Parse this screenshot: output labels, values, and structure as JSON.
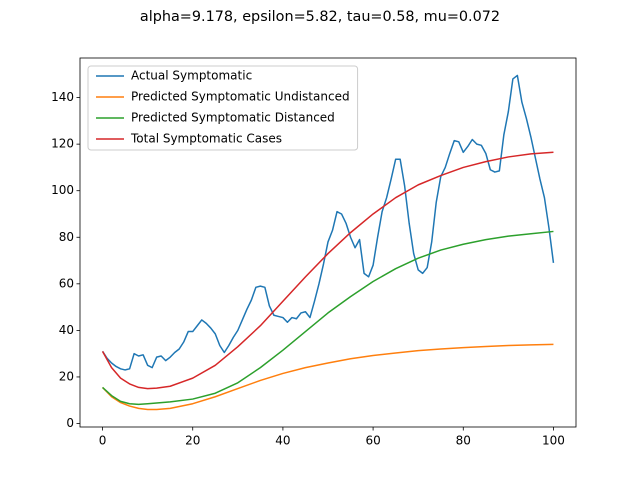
{
  "chart_data": {
    "type": "line",
    "title": "alpha=9.178, epsilon=5.82, tau=0.58, mu=0.072",
    "xlim": [
      -5,
      105
    ],
    "ylim": [
      -1.5,
      157
    ],
    "xticks": [
      0,
      20,
      40,
      60,
      80,
      100
    ],
    "yticks": [
      0,
      20,
      40,
      60,
      80,
      100,
      120,
      140
    ],
    "legend": "upper left",
    "series": [
      {
        "name": "Actual Symptomatic",
        "color": "#1f77b4",
        "x": [
          0,
          1,
          2,
          3,
          4,
          5,
          6,
          7,
          8,
          9,
          10,
          11,
          12,
          13,
          14,
          15,
          16,
          17,
          18,
          19,
          20,
          21,
          22,
          23,
          24,
          25,
          26,
          27,
          28,
          29,
          30,
          31,
          32,
          33,
          34,
          35,
          36,
          37,
          38,
          39,
          40,
          41,
          42,
          43,
          44,
          45,
          46,
          47,
          48,
          49,
          50,
          51,
          52,
          53,
          54,
          55,
          56,
          57,
          58,
          59,
          60,
          61,
          62,
          63,
          64,
          65,
          66,
          67,
          68,
          69,
          70,
          71,
          72,
          73,
          74,
          75,
          76,
          77,
          78,
          79,
          80,
          81,
          82,
          83,
          84,
          85,
          86,
          87,
          88,
          89,
          90,
          91,
          92,
          93,
          94,
          95,
          96,
          97,
          98,
          99,
          100
        ],
        "values": [
          31,
          28,
          26,
          24.5,
          23.5,
          23,
          23.5,
          30,
          29,
          29.5,
          25,
          24,
          28.5,
          29,
          27,
          28.5,
          30.5,
          32,
          35,
          39.5,
          39.5,
          42,
          44.5,
          43,
          41,
          38.5,
          33.5,
          30.5,
          33.5,
          37,
          40,
          44.5,
          49,
          53,
          58.5,
          59,
          58.5,
          50.5,
          46.5,
          46,
          45.5,
          43.5,
          45.5,
          45,
          47.5,
          48,
          45.5,
          52.5,
          60,
          68.5,
          78,
          83,
          91,
          90,
          86,
          80,
          75.5,
          79,
          64.5,
          63,
          68,
          80,
          91,
          97,
          105,
          113.5,
          113.5,
          102,
          86,
          73,
          66,
          64.5,
          67,
          78,
          95,
          106,
          110,
          116,
          121.5,
          121,
          116.5,
          119,
          122,
          120,
          119.5,
          116,
          109,
          108,
          108.5,
          124,
          134,
          148,
          149.5,
          138,
          131,
          123,
          114,
          105,
          97,
          84,
          69
        ]
      },
      {
        "name": "Predicted Symptomatic Undistanced",
        "color": "#ff7f0e",
        "x": [
          0,
          2,
          4,
          6,
          8,
          10,
          12,
          15,
          20,
          25,
          30,
          35,
          40,
          45,
          50,
          55,
          60,
          65,
          70,
          75,
          80,
          85,
          90,
          95,
          100
        ],
        "values": [
          15.5,
          11.5,
          9,
          7.5,
          6.5,
          6,
          6,
          6.5,
          8.5,
          11.5,
          15,
          18.5,
          21.5,
          24,
          26,
          27.8,
          29.2,
          30.3,
          31.3,
          32,
          32.6,
          33.1,
          33.5,
          33.8,
          34
        ]
      },
      {
        "name": "Predicted Symptomatic Distanced",
        "color": "#2ca02c",
        "x": [
          0,
          2,
          4,
          6,
          8,
          10,
          12,
          15,
          20,
          25,
          30,
          35,
          40,
          45,
          50,
          55,
          60,
          65,
          70,
          75,
          80,
          85,
          90,
          95,
          100
        ],
        "values": [
          15.5,
          12,
          9.5,
          8.5,
          8.2,
          8.5,
          8.8,
          9.3,
          10.5,
          13,
          17.5,
          24,
          31.5,
          39.5,
          47.5,
          54.5,
          61,
          66.5,
          71,
          74.5,
          77,
          79,
          80.5,
          81.5,
          82.5
        ]
      },
      {
        "name": "Total Symptomatic Cases",
        "color": "#d62728",
        "x": [
          0,
          2,
          4,
          6,
          8,
          10,
          12,
          15,
          20,
          25,
          30,
          35,
          40,
          45,
          50,
          55,
          60,
          65,
          70,
          75,
          80,
          85,
          90,
          95,
          100
        ],
        "values": [
          31,
          24,
          19.5,
          17,
          15.5,
          15,
          15.2,
          16,
          19.5,
          25,
          33,
          42,
          52.5,
          63,
          73,
          82,
          90,
          97,
          102.5,
          106.5,
          110,
          112.5,
          114.5,
          115.8,
          116.5
        ]
      }
    ]
  }
}
